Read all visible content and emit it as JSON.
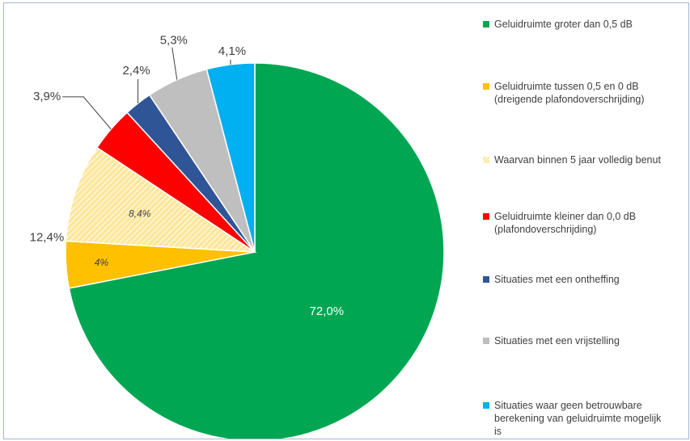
{
  "chart_data": {
    "type": "pie",
    "title": "",
    "slices": [
      {
        "name": "Geluidruimte groter dan 0,5 dB",
        "value": 72.0,
        "label": "72,0%",
        "color": "#00a651",
        "pattern": false
      },
      {
        "name": "Geluidruimte tussen 0,5 en 0 dB\n(dreigende plafondoverschrijding)",
        "value": 4.0,
        "label": "4%",
        "color": "#ffc000",
        "pattern": false
      },
      {
        "name": "Waarvan binnen 5 jaar volledig benut",
        "value": 8.4,
        "label": "8,4%",
        "color": "#ffe699",
        "pattern": true
      },
      {
        "name": "Geluidruimte kleiner dan 0,0 dB\n(plafondoverschrijding)",
        "value": 3.9,
        "label": "3,9%",
        "color": "#ff0000",
        "pattern": false
      },
      {
        "name": "Situaties met een ontheffing",
        "value": 2.4,
        "label": "2,4%",
        "color": "#2f5597",
        "pattern": false
      },
      {
        "name": "Situaties met een vrijstelling",
        "value": 5.3,
        "label": "5,3%",
        "color": "#bfbfbf",
        "pattern": false
      },
      {
        "name": "Situaties waar geen betrouwbare\nberekening van geluidruimte mogelijk\nis",
        "value": 4.1,
        "label": "4,1%",
        "color": "#00b0f0",
        "pattern": false
      }
    ],
    "group_label": "12,4%",
    "legend_position": "right",
    "start_angle_deg": 0,
    "direction": "clockwise"
  }
}
